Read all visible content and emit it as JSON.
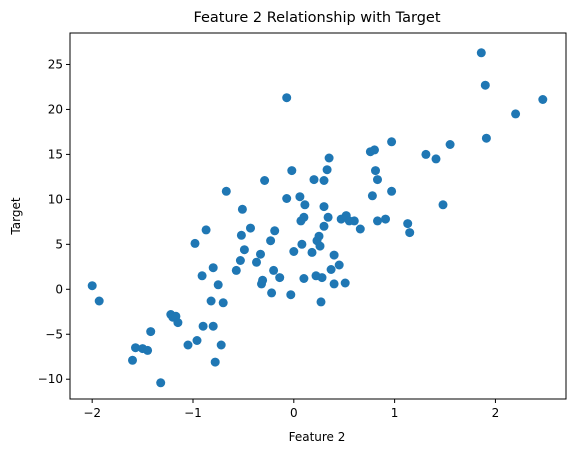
{
  "chart_data": {
    "type": "scatter",
    "title": "Feature 2 Relationship with Target",
    "xlabel": "Feature 2",
    "ylabel": "Target",
    "xlim": [
      -2.22,
      2.7
    ],
    "ylim": [
      -12.2,
      28.5
    ],
    "xticks": [
      -2,
      -1,
      0,
      1,
      2
    ],
    "xtick_labels": [
      "−2",
      "−1",
      "0",
      "1",
      "2"
    ],
    "yticks": [
      -10,
      -5,
      0,
      5,
      10,
      15,
      20,
      25
    ],
    "ytick_labels": [
      "−10",
      "−5",
      "0",
      "5",
      "10",
      "15",
      "20",
      "25"
    ],
    "grid": false,
    "legend": "none",
    "marker_color": "#1f77b4",
    "points": [
      [
        -2.0,
        0.4
      ],
      [
        -1.93,
        -1.3
      ],
      [
        -1.6,
        -7.9
      ],
      [
        -1.57,
        -6.5
      ],
      [
        -1.5,
        -6.6
      ],
      [
        -1.45,
        -6.8
      ],
      [
        -1.42,
        -4.7
      ],
      [
        -1.32,
        -10.4
      ],
      [
        -1.22,
        -2.8
      ],
      [
        -1.2,
        -3.1
      ],
      [
        -1.17,
        -3.0
      ],
      [
        -1.15,
        -3.7
      ],
      [
        -1.05,
        -6.2
      ],
      [
        -0.98,
        5.1
      ],
      [
        -0.96,
        -5.7
      ],
      [
        -0.91,
        1.5
      ],
      [
        -0.9,
        -4.1
      ],
      [
        -0.87,
        6.6
      ],
      [
        -0.82,
        -1.3
      ],
      [
        -0.8,
        -4.1
      ],
      [
        -0.8,
        2.4
      ],
      [
        -0.78,
        -8.1
      ],
      [
        -0.75,
        0.5
      ],
      [
        -0.72,
        -6.2
      ],
      [
        -0.7,
        -1.5
      ],
      [
        -0.67,
        10.9
      ],
      [
        -0.57,
        2.1
      ],
      [
        -0.53,
        3.2
      ],
      [
        -0.52,
        6.0
      ],
      [
        -0.51,
        8.9
      ],
      [
        -0.49,
        4.4
      ],
      [
        -0.43,
        6.8
      ],
      [
        -0.37,
        3.0
      ],
      [
        -0.33,
        3.9
      ],
      [
        -0.32,
        0.6
      ],
      [
        -0.31,
        1.0
      ],
      [
        -0.29,
        12.1
      ],
      [
        -0.23,
        5.4
      ],
      [
        -0.22,
        -0.4
      ],
      [
        -0.2,
        2.1
      ],
      [
        -0.19,
        6.5
      ],
      [
        -0.14,
        1.3
      ],
      [
        -0.07,
        10.1
      ],
      [
        -0.07,
        21.3
      ],
      [
        -0.03,
        -0.6
      ],
      [
        -0.02,
        13.2
      ],
      [
        0.0,
        4.2
      ],
      [
        0.06,
        10.3
      ],
      [
        0.07,
        7.6
      ],
      [
        0.08,
        5.0
      ],
      [
        0.1,
        1.2
      ],
      [
        0.1,
        8.0
      ],
      [
        0.11,
        9.4
      ],
      [
        0.18,
        4.1
      ],
      [
        0.2,
        12.2
      ],
      [
        0.22,
        1.5
      ],
      [
        0.23,
        5.4
      ],
      [
        0.25,
        5.9
      ],
      [
        0.26,
        4.8
      ],
      [
        0.27,
        -1.4
      ],
      [
        0.28,
        1.3
      ],
      [
        0.3,
        12.1
      ],
      [
        0.3,
        7.0
      ],
      [
        0.3,
        9.2
      ],
      [
        0.33,
        13.3
      ],
      [
        0.34,
        8.0
      ],
      [
        0.35,
        14.6
      ],
      [
        0.37,
        2.2
      ],
      [
        0.4,
        0.6
      ],
      [
        0.4,
        3.8
      ],
      [
        0.45,
        2.7
      ],
      [
        0.47,
        7.8
      ],
      [
        0.51,
        0.7
      ],
      [
        0.52,
        8.2
      ],
      [
        0.55,
        7.6
      ],
      [
        0.6,
        7.6
      ],
      [
        0.66,
        6.7
      ],
      [
        0.76,
        15.3
      ],
      [
        0.78,
        10.4
      ],
      [
        0.8,
        15.5
      ],
      [
        0.81,
        13.2
      ],
      [
        0.83,
        7.6
      ],
      [
        0.83,
        12.2
      ],
      [
        0.91,
        7.8
      ],
      [
        0.97,
        16.4
      ],
      [
        0.97,
        10.9
      ],
      [
        1.13,
        7.3
      ],
      [
        1.15,
        6.3
      ],
      [
        1.31,
        15.0
      ],
      [
        1.41,
        14.5
      ],
      [
        1.48,
        9.4
      ],
      [
        1.55,
        16.1
      ],
      [
        1.86,
        26.3
      ],
      [
        1.9,
        22.7
      ],
      [
        1.91,
        16.8
      ],
      [
        2.2,
        19.5
      ],
      [
        2.47,
        21.1
      ]
    ]
  }
}
